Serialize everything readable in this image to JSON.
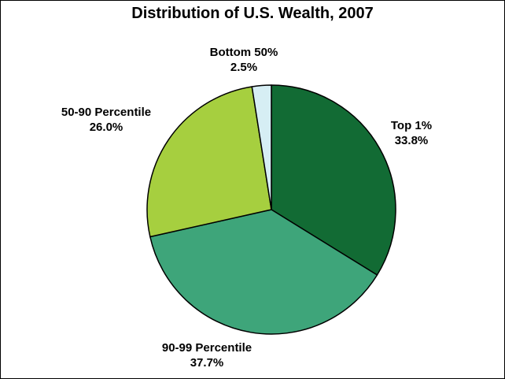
{
  "chart_data": {
    "type": "pie",
    "title": "Distribution of U.S. Wealth, 2007",
    "start_angle": "12 o'clock",
    "direction": "clockwise",
    "slices": [
      {
        "label": "Top 1%",
        "value": 33.8,
        "value_label": "33.8%",
        "color": "#126b34"
      },
      {
        "label": "90-99 Percentile",
        "value": 37.7,
        "value_label": "37.7%",
        "color": "#3ea57a"
      },
      {
        "label": "50-90 Percentile",
        "value": 26.0,
        "value_label": "26.0%",
        "color": "#a6cf3f"
      },
      {
        "label": "Bottom 50%",
        "value": 2.5,
        "value_label": "2.5%",
        "color": "#d6eef4"
      }
    ]
  }
}
